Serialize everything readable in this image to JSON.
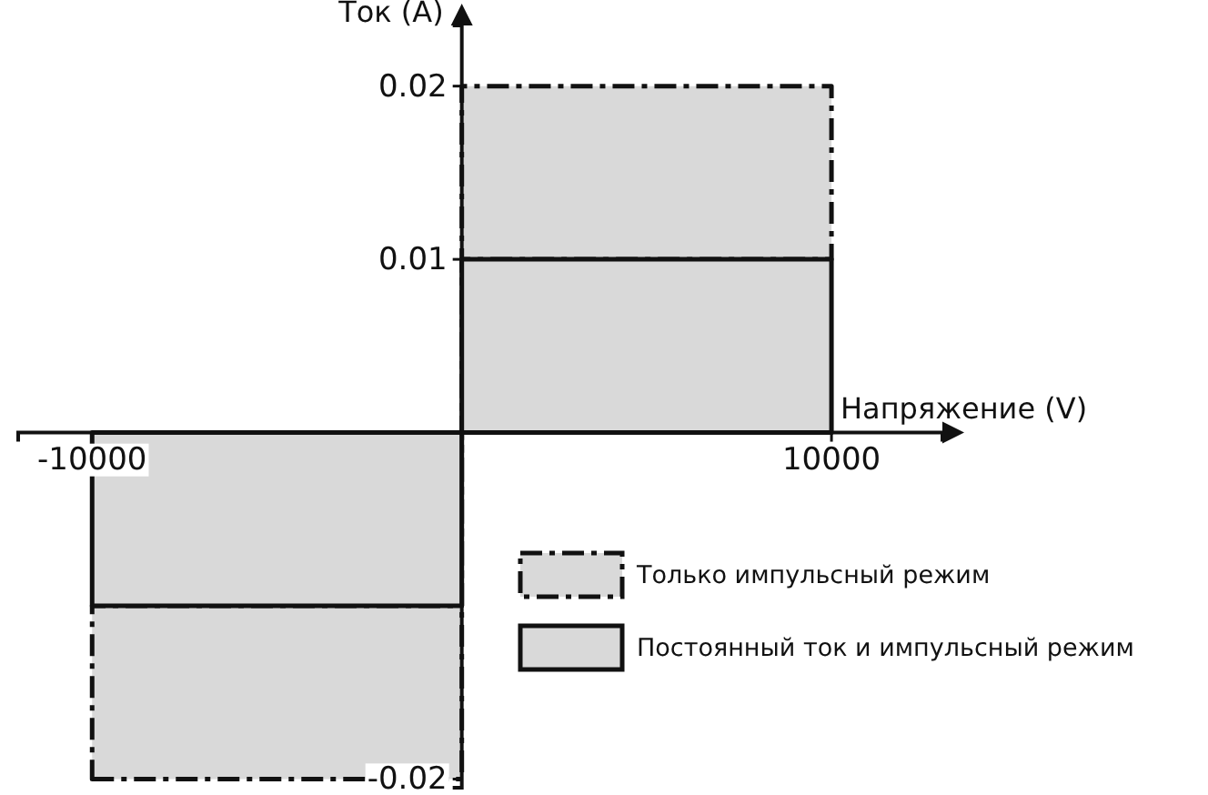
{
  "chart_data": {
    "type": "area",
    "xlabel": "Напряжение (V)",
    "ylabel": "Ток (A)",
    "xlim": [
      -12000,
      13000
    ],
    "ylim": [
      -0.0205,
      0.0235
    ],
    "xticks": [
      -10000,
      10000
    ],
    "yticks": [
      -0.02,
      0.01,
      0.02
    ],
    "stacked": true,
    "series": [
      {
        "name": "Постоянный ток и импульсный режим",
        "color": "#d9d9d9",
        "line_style": "solid",
        "x": [
          -10000,
          0,
          0,
          10000
        ],
        "values": [
          -0.01,
          -0.01,
          0.01,
          0.01
        ]
      },
      {
        "name": "Только импульсный режим",
        "color": "#d9d9d9",
        "line_style": "dashed",
        "x": [
          -10000,
          0,
          0,
          10000
        ],
        "values": [
          -0.01,
          -0.01,
          0.01,
          0.01
        ]
      }
    ],
    "legend": "bottom right",
    "grid": false
  }
}
